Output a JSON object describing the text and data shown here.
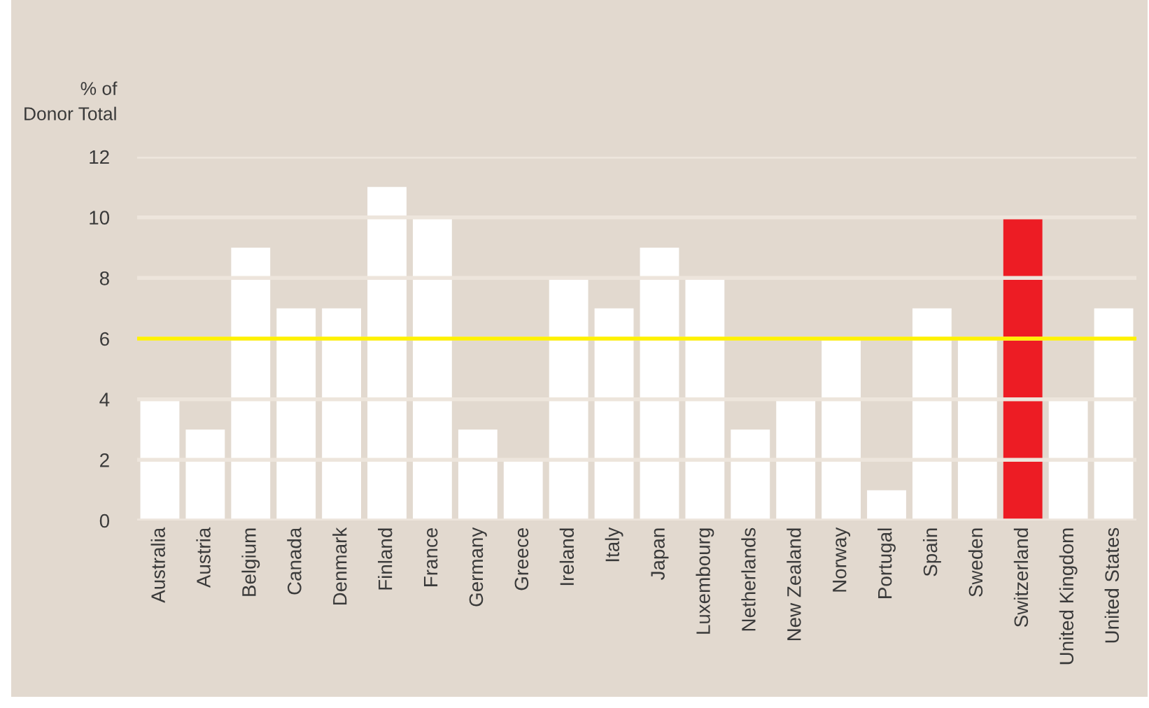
{
  "chart_data": {
    "type": "bar",
    "ylabel": "% of\nDonor Total",
    "categories": [
      "Australia",
      "Austria",
      "Belgium",
      "Canada",
      "Denmark",
      "Finland",
      "France",
      "Germany",
      "Greece",
      "Ireland",
      "Italy",
      "Japan",
      "Luxembourg",
      "Netherlands",
      "New Zealand",
      "Norway",
      "Portugal",
      "Spain",
      "Sweden",
      "Switzerland",
      "United Kingdom",
      "United States"
    ],
    "values": [
      4,
      3,
      9,
      7,
      7,
      11,
      10,
      3,
      2,
      8,
      7,
      9,
      8,
      3,
      4,
      6,
      1,
      7,
      6,
      10,
      4,
      7
    ],
    "colors": [
      "#ffffff",
      "#ffffff",
      "#ffffff",
      "#ffffff",
      "#ffffff",
      "#ffffff",
      "#ffffff",
      "#ffffff",
      "#ffffff",
      "#ffffff",
      "#ffffff",
      "#ffffff",
      "#ffffff",
      "#ffffff",
      "#ffffff",
      "#ffffff",
      "#ffffff",
      "#ffffff",
      "#ffffff",
      "#ed1c24",
      "#ffffff",
      "#ffffff"
    ],
    "ylim": [
      0,
      12
    ],
    "yticks": [
      0,
      2,
      4,
      6,
      8,
      10,
      12
    ],
    "grid": "y",
    "ref_lines": [
      {
        "axis": "y",
        "value": 6,
        "color": "#fff200"
      }
    ]
  }
}
